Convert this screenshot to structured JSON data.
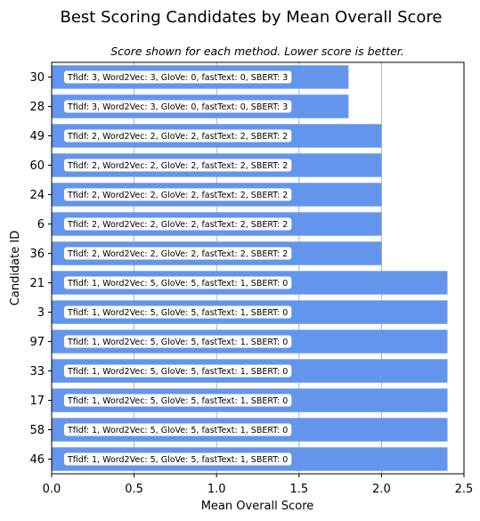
{
  "colors": {
    "bar": "#6495ed",
    "grid": "#b0b0b0",
    "label_box": "#ffffff",
    "axis": "#000000"
  },
  "chart_data": {
    "type": "bar",
    "orientation": "horizontal",
    "title": "Best Scoring Candidates by Mean Overall Score",
    "subtitle": "Score shown for each method. Lower score is better.",
    "xlabel": "Mean Overall Score",
    "ylabel": "Candidate ID",
    "xlim": [
      0,
      2.5
    ],
    "xticks": [
      "0.0",
      "0.5",
      "1.0",
      "1.5",
      "2.0",
      "2.5"
    ],
    "grid": "vertical",
    "categories": [
      "30",
      "28",
      "49",
      "60",
      "24",
      "6",
      "36",
      "21",
      "3",
      "97",
      "33",
      "17",
      "58",
      "46"
    ],
    "values": [
      1.8,
      1.8,
      2.0,
      2.0,
      2.0,
      2.0,
      2.0,
      2.4,
      2.4,
      2.4,
      2.4,
      2.4,
      2.4,
      2.4
    ],
    "annotations": [
      "Tfidf: 3, Word2Vec: 3, GloVe: 0, fastText: 0, SBERT: 3",
      "Tfidf: 3, Word2Vec: 3, GloVe: 0, fastText: 0, SBERT: 3",
      "Tfidf: 2, Word2Vec: 2, GloVe: 2, fastText: 2, SBERT: 2",
      "Tfidf: 2, Word2Vec: 2, GloVe: 2, fastText: 2, SBERT: 2",
      "Tfidf: 2, Word2Vec: 2, GloVe: 2, fastText: 2, SBERT: 2",
      "Tfidf: 2, Word2Vec: 2, GloVe: 2, fastText: 2, SBERT: 2",
      "Tfidf: 2, Word2Vec: 2, GloVe: 2, fastText: 2, SBERT: 2",
      "Tfidf: 1, Word2Vec: 5, GloVe: 5, fastText: 1, SBERT: 0",
      "Tfidf: 1, Word2Vec: 5, GloVe: 5, fastText: 1, SBERT: 0",
      "Tfidf: 1, Word2Vec: 5, GloVe: 5, fastText: 1, SBERT: 0",
      "Tfidf: 1, Word2Vec: 5, GloVe: 5, fastText: 1, SBERT: 0",
      "Tfidf: 1, Word2Vec: 5, GloVe: 5, fastText: 1, SBERT: 0",
      "Tfidf: 1, Word2Vec: 5, GloVe: 5, fastText: 1, SBERT: 0",
      "Tfidf: 1, Word2Vec: 5, GloVe: 5, fastText: 1, SBERT: 0"
    ]
  }
}
